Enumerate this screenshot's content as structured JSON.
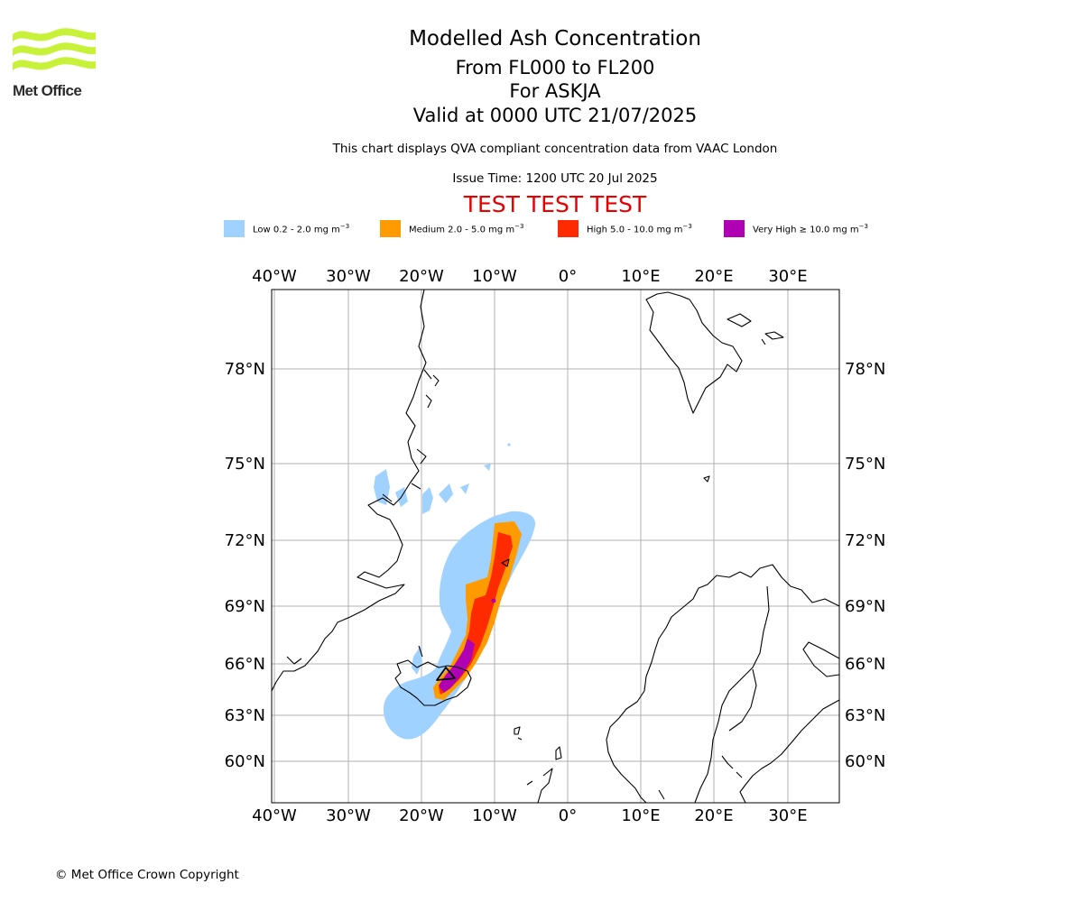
{
  "logo": {
    "text": "Met Office"
  },
  "header": {
    "title": "Modelled Ash Concentration",
    "levels": "From FL000 to FL200",
    "volcano": "For ASKJA",
    "valid": "Valid at 0000 UTC 21/07/2025",
    "subtitle": "This chart displays QVA compliant concentration data from VAAC London",
    "issue_time": "Issue Time: 1200 UTC 20 Jul 2025",
    "test_banner": "TEST TEST TEST"
  },
  "legend": [
    {
      "label": "Low 0.2 - 2.0 mg m",
      "color": "#a0d2ff"
    },
    {
      "label": "Medium 2.0 - 5.0 mg m",
      "color": "#ff9a00"
    },
    {
      "label": "High 5.0 - 10.0 mg m",
      "color": "#ff2a00"
    },
    {
      "label": "Very High ≥ 10.0 mg m",
      "color": "#b000b4"
    }
  ],
  "legend_unit_exponent": "−3",
  "map": {
    "lon_labels": [
      "40°W",
      "30°W",
      "20°W",
      "10°W",
      "0°",
      "10°E",
      "20°E",
      "30°E"
    ],
    "lat_labels": [
      "78°N",
      "75°N",
      "72°N",
      "69°N",
      "66°N",
      "63°N",
      "60°N"
    ],
    "colors": {
      "grid": "#b0b0b0",
      "coast": "#000000",
      "frame": "#000000"
    }
  },
  "footer": {
    "copyright": "© Met Office Crown Copyright"
  }
}
